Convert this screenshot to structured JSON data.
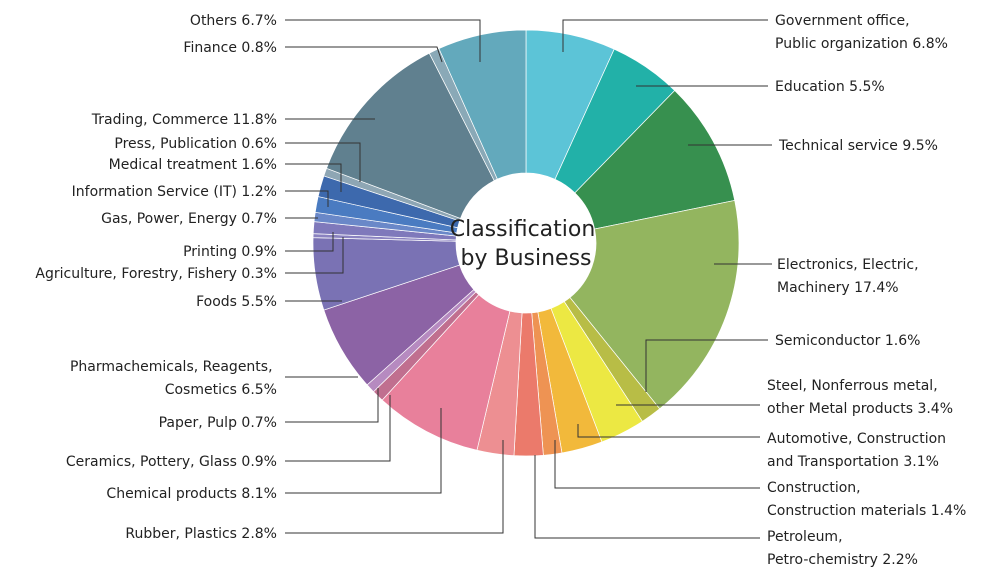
{
  "chart_data": {
    "type": "donut",
    "title": "Classification by Business",
    "categories": [
      "Government office, Public organization",
      "Education",
      "Technical service",
      "Electronics, Electric, Machinery",
      "Semiconductor",
      "Steel, Nonferrous metal, other Metal products",
      "Automotive, Construction and Transportation",
      "Construction, Construction materials",
      "Petroleum, Petro-chemistry",
      "Rubber, Plastics",
      "Chemical products",
      "Ceramics, Pottery, Glass",
      "Paper, Pulp",
      "Pharmachemicals, Reagents, Cosmetics",
      "Foods",
      "Agriculture, Forestry, Fishery",
      "Printing",
      "Gas, Power, Energy",
      "Information Service (IT)",
      "Medical treatment",
      "Press, Publication",
      "Trading, Commerce",
      "Finance",
      "Others"
    ],
    "values": [
      6.8,
      5.5,
      9.5,
      17.4,
      1.6,
      3.4,
      3.1,
      1.4,
      2.2,
      2.8,
      8.1,
      0.9,
      0.7,
      6.5,
      5.5,
      0.3,
      0.9,
      0.7,
      1.2,
      1.6,
      0.6,
      11.8,
      0.8,
      6.7
    ],
    "value_labels": [
      "6.8%",
      "5.5%",
      "9.5%",
      "17.4%",
      "1.6%",
      "3.4%",
      "3.1%",
      "1.4%",
      "2.2%",
      "2.8%",
      "8.1%",
      "0.9%",
      "0.7%",
      "6.5%",
      "5.5%",
      "0.3%",
      "0.9%",
      "0.7%",
      "1.2%",
      "1.6%",
      "0.6%",
      "11.8%",
      "0.8%",
      "6.7%"
    ],
    "colors": [
      "#5cc4d7",
      "#22b1a8",
      "#37904f",
      "#93b55f",
      "#b8bd46",
      "#ece843",
      "#f2b93b",
      "#ee9353",
      "#eb7a6b",
      "#ed8f92",
      "#e8809b",
      "#c06f8f",
      "#b68ac0",
      "#8c63a5",
      "#7a72b4",
      "#8a82c0",
      "#7f79bb",
      "#6a88c8",
      "#4a7bc1",
      "#3d69ad",
      "#8ea6b4",
      "#60808f",
      "#8aa9b7",
      "#63a9bc"
    ]
  }
}
